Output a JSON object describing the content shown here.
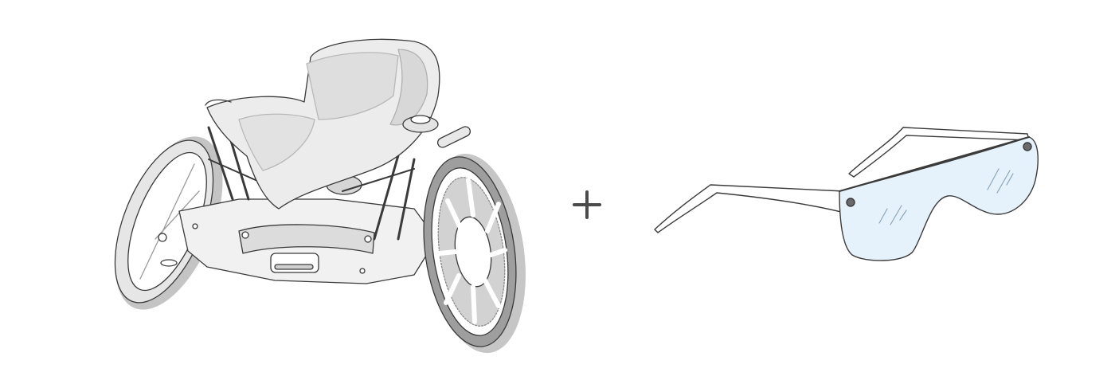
{
  "illustrations": [
    {
      "icon": "racing-wheelchair-icon"
    },
    {
      "icon": "plus-icon"
    },
    {
      "icon": "smart-glasses-icon"
    }
  ],
  "colors": {
    "stroke": "#3a3a3a",
    "shadow": "#c9c9c9",
    "fill_light": "#ededed",
    "fill_mid": "#dcdcdc",
    "lens": "#e6f2fb",
    "plus": "#4a4a4a"
  }
}
